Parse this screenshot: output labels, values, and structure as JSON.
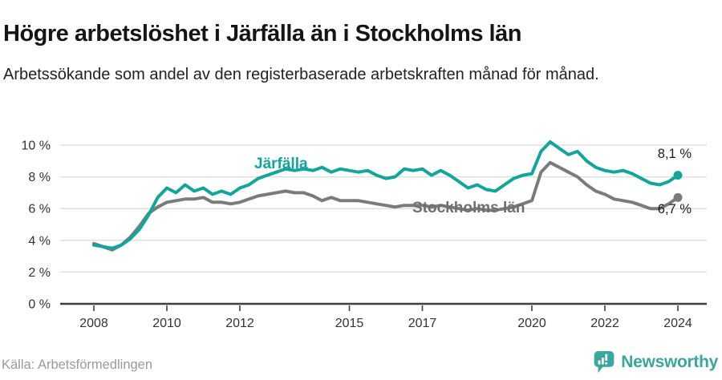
{
  "header": {
    "title": "Högre arbetslöshet i Järfälla än i Stockholms län",
    "subtitle": "Arbetssökande som andel av den registerbaserade arbetskraften månad för månad."
  },
  "footer": {
    "source": "Källa: Arbetsförmedlingen",
    "brand": "Newsworthy"
  },
  "colors": {
    "jarfalla_teal": "#13a49b",
    "stockholm_gray": "#7b7b7b",
    "grid": "#dcdcdc",
    "axis": "#3f3f3f",
    "tick_text": "#333333",
    "end_label_text": "#1a1a1a",
    "source_gray": "#9b9b9b",
    "logo_teal": "#3aa79f"
  },
  "chart_data": {
    "type": "line",
    "title": "Högre arbetslöshet i Järfälla än i Stockholms län",
    "xlabel": "",
    "ylabel": "",
    "unit": "%",
    "xlim": [
      2008,
      2024.4
    ],
    "ylim": [
      0,
      10.5
    ],
    "grid": "horizontal",
    "legend_position": "inline-labels",
    "x_ticks": [
      {
        "v": 2008,
        "label": "2008"
      },
      {
        "v": 2010,
        "label": "2010"
      },
      {
        "v": 2012,
        "label": "2012"
      },
      {
        "v": 2015,
        "label": "2015"
      },
      {
        "v": 2017,
        "label": "2017"
      },
      {
        "v": 2020,
        "label": "2020"
      },
      {
        "v": 2022,
        "label": "2022"
      },
      {
        "v": 2024,
        "label": "2024"
      }
    ],
    "y_ticks": [
      {
        "v": 0,
        "label": "0 %"
      },
      {
        "v": 2,
        "label": "2 %"
      },
      {
        "v": 4,
        "label": "4 %"
      },
      {
        "v": 6,
        "label": "6 %"
      },
      {
        "v": 8,
        "label": "8 %"
      },
      {
        "v": 10,
        "label": "10 %"
      }
    ],
    "x": [
      2008.0,
      2008.25,
      2008.5,
      2008.75,
      2009.0,
      2009.25,
      2009.5,
      2009.75,
      2010.0,
      2010.25,
      2010.5,
      2010.75,
      2011.0,
      2011.25,
      2011.5,
      2011.75,
      2012.0,
      2012.25,
      2012.5,
      2012.75,
      2013.0,
      2013.25,
      2013.5,
      2013.75,
      2014.0,
      2014.25,
      2014.5,
      2014.75,
      2015.0,
      2015.25,
      2015.5,
      2015.75,
      2016.0,
      2016.25,
      2016.5,
      2016.75,
      2017.0,
      2017.25,
      2017.5,
      2017.75,
      2018.0,
      2018.25,
      2018.5,
      2018.75,
      2019.0,
      2019.25,
      2019.5,
      2019.75,
      2020.0,
      2020.25,
      2020.5,
      2020.75,
      2021.0,
      2021.25,
      2021.5,
      2021.75,
      2022.0,
      2022.25,
      2022.5,
      2022.75,
      2023.0,
      2023.25,
      2023.5,
      2023.75,
      2024.0
    ],
    "series": [
      {
        "name": "Järfälla",
        "color": "#13a49b",
        "end_label": "8,1 %",
        "end_value": 8.1,
        "values": [
          3.7,
          3.6,
          3.5,
          3.7,
          4.1,
          4.7,
          5.6,
          6.7,
          7.3,
          7.0,
          7.5,
          7.1,
          7.3,
          6.9,
          7.1,
          6.9,
          7.3,
          7.5,
          7.9,
          8.1,
          8.3,
          8.5,
          8.4,
          8.5,
          8.4,
          8.6,
          8.3,
          8.5,
          8.4,
          8.3,
          8.4,
          8.1,
          7.9,
          8.0,
          8.5,
          8.4,
          8.5,
          8.1,
          8.4,
          8.1,
          7.7,
          7.3,
          7.5,
          7.2,
          7.1,
          7.5,
          7.9,
          8.1,
          8.2,
          9.6,
          10.2,
          9.8,
          9.4,
          9.6,
          9.0,
          8.6,
          8.4,
          8.3,
          8.4,
          8.2,
          7.9,
          7.6,
          7.5,
          7.7,
          8.1
        ]
      },
      {
        "name": "Stockholms län",
        "color": "#7b7b7b",
        "end_label": "6,7 %",
        "end_value": 6.7,
        "values": [
          3.8,
          3.6,
          3.4,
          3.7,
          4.2,
          4.9,
          5.7,
          6.1,
          6.4,
          6.5,
          6.6,
          6.6,
          6.7,
          6.4,
          6.4,
          6.3,
          6.4,
          6.6,
          6.8,
          6.9,
          7.0,
          7.1,
          7.0,
          7.0,
          6.8,
          6.5,
          6.7,
          6.5,
          6.5,
          6.5,
          6.4,
          6.3,
          6.2,
          6.1,
          6.2,
          6.2,
          6.2,
          6.1,
          6.2,
          6.1,
          6.0,
          5.9,
          6.0,
          5.9,
          5.9,
          6.0,
          6.1,
          6.3,
          6.5,
          8.3,
          8.9,
          8.6,
          8.3,
          8.0,
          7.5,
          7.1,
          6.9,
          6.6,
          6.5,
          6.4,
          6.2,
          6.0,
          6.0,
          6.3,
          6.7
        ]
      }
    ]
  }
}
